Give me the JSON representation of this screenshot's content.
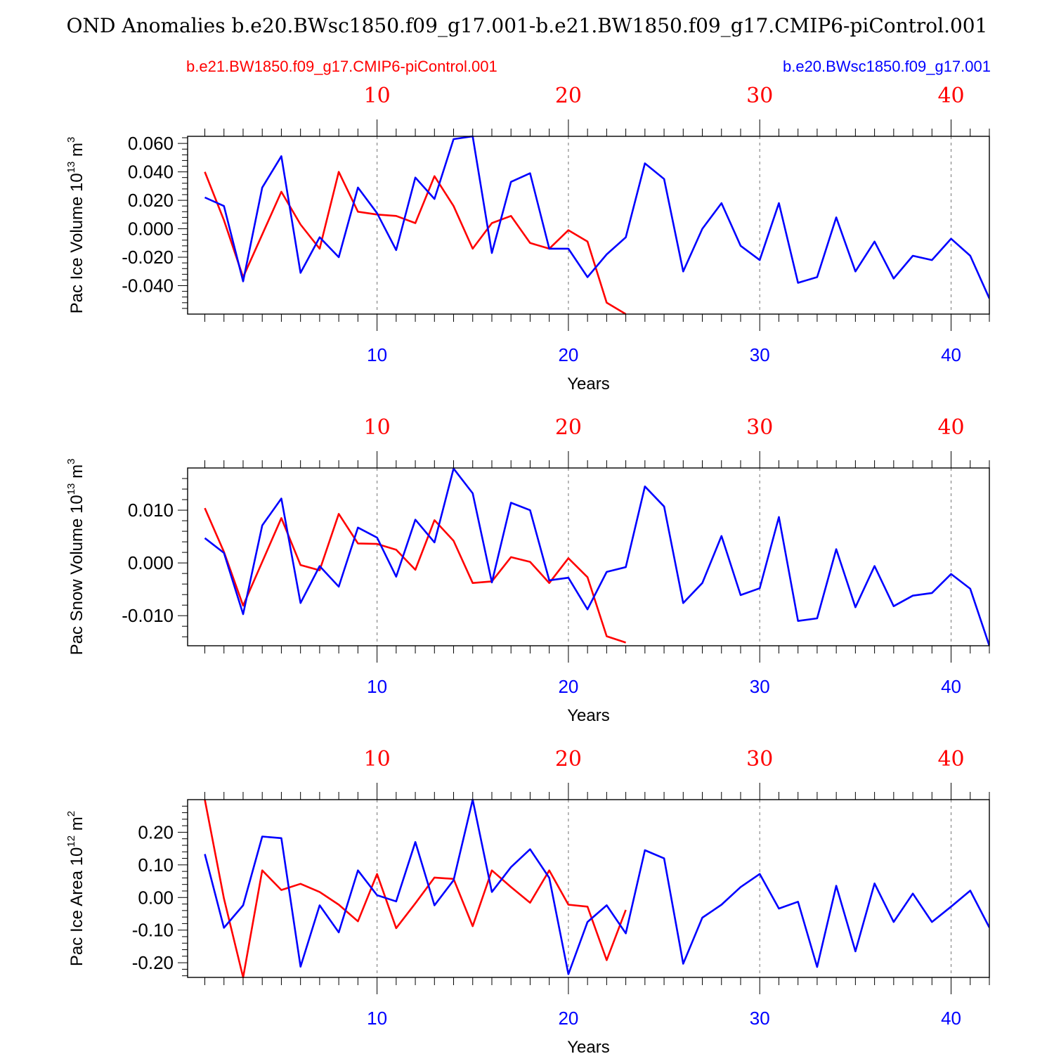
{
  "title": "OND Anomalies b.e20.BWsc1850.f09_g17.001-b.e21.BW1850.f09_g17.CMIP6-piControl.001",
  "legend": {
    "red_label": "b.e21.BW1850.f09_g17.CMIP6-piControl.001",
    "blue_label": "b.e20.BWsc1850.f09_g17.001"
  },
  "colors": {
    "red": "#ff0000",
    "blue": "#0000ff",
    "axis": "#000000",
    "grid": "#888888"
  },
  "chart_data": [
    {
      "type": "line",
      "title": "",
      "xlabel": "Years",
      "ylabel": "Pac Ice Volume 10^13 m^3",
      "ylabel_main": "Pac Ice Volume 10",
      "ylabel_exp": "13",
      "ylabel_unit": " m",
      "ylabel_unit_exp": "3",
      "xlim": [
        0.1,
        42
      ],
      "ylim": [
        -0.06,
        0.065
      ],
      "ytick_values": [
        -0.04,
        -0.02,
        0.0,
        0.02,
        0.04,
        0.06
      ],
      "ytick_labels": [
        "-0.040",
        "-0.020",
        "0.000",
        "0.020",
        "0.040",
        "0.060"
      ],
      "xtick_values": [
        10,
        20,
        30,
        40
      ],
      "xtick_labels": [
        "10",
        "20",
        "30",
        "40"
      ],
      "series": [
        {
          "name": "b.e21.BW1850.f09_g17.CMIP6-piControl.001",
          "color": "#ff0000",
          "x": [
            1,
            2,
            3,
            4,
            5,
            6,
            7,
            8,
            9,
            10,
            11,
            12,
            13,
            14,
            15,
            16,
            17,
            18,
            19,
            20,
            21,
            22,
            23
          ],
          "values": [
            0.04,
            0.006,
            -0.034,
            -0.004,
            0.026,
            0.003,
            -0.014,
            0.04,
            0.012,
            0.01,
            0.009,
            0.004,
            0.037,
            0.016,
            -0.014,
            0.004,
            0.009,
            -0.01,
            -0.014,
            -0.001,
            -0.009,
            -0.052,
            -0.06
          ]
        },
        {
          "name": "b.e20.BWsc1850.f09_g17.001",
          "color": "#0000ff",
          "x": [
            1,
            2,
            3,
            4,
            5,
            6,
            7,
            8,
            9,
            10,
            11,
            12,
            13,
            14,
            15,
            16,
            17,
            18,
            19,
            20,
            21,
            22,
            23,
            24,
            25,
            26,
            27,
            28,
            29,
            30,
            31,
            32,
            33,
            34,
            35,
            36,
            37,
            38,
            39,
            40,
            41,
            42
          ],
          "values": [
            0.022,
            0.016,
            -0.037,
            0.029,
            0.051,
            -0.031,
            -0.006,
            -0.02,
            0.029,
            0.011,
            -0.015,
            0.036,
            0.021,
            0.063,
            0.065,
            -0.017,
            0.033,
            0.039,
            -0.014,
            -0.014,
            -0.034,
            -0.018,
            -0.006,
            0.046,
            0.035,
            -0.03,
            0.0,
            0.018,
            -0.012,
            -0.022,
            0.018,
            -0.038,
            -0.034,
            0.008,
            -0.03,
            -0.009,
            -0.035,
            -0.019,
            -0.022,
            -0.007,
            -0.019,
            -0.049
          ]
        }
      ]
    },
    {
      "type": "line",
      "title": "",
      "xlabel": "Years",
      "ylabel": "Pac Snow Volume 10^13 m^3",
      "ylabel_main": "Pac Snow Volume 10",
      "ylabel_exp": "13",
      "ylabel_unit": " m",
      "ylabel_unit_exp": "3",
      "xlim": [
        0.1,
        42
      ],
      "ylim": [
        -0.0157,
        0.018
      ],
      "ytick_values": [
        -0.01,
        0.0,
        0.01
      ],
      "ytick_labels": [
        "-0.010",
        "0.000",
        "0.010"
      ],
      "xtick_values": [
        10,
        20,
        30,
        40
      ],
      "xtick_labels": [
        "10",
        "20",
        "30",
        "40"
      ],
      "series": [
        {
          "name": "b.e21.BW1850.f09_g17.CMIP6-piControl.001",
          "color": "#ff0000",
          "x": [
            1,
            2,
            3,
            4,
            5,
            6,
            7,
            8,
            9,
            10,
            11,
            12,
            13,
            14,
            15,
            16,
            17,
            18,
            19,
            20,
            21,
            22,
            23
          ],
          "values": [
            0.0104,
            0.0021,
            -0.0081,
            0.0002,
            0.0085,
            -0.0004,
            -0.0014,
            0.0093,
            0.0037,
            0.0036,
            0.0025,
            -0.0013,
            0.0081,
            0.0042,
            -0.0038,
            -0.0035,
            0.0011,
            0.0002,
            -0.0038,
            0.0009,
            -0.0027,
            -0.0139,
            -0.0151
          ]
        },
        {
          "name": "b.e20.BWsc1850.f09_g17.001",
          "color": "#0000ff",
          "x": [
            1,
            2,
            3,
            4,
            5,
            6,
            7,
            8,
            9,
            10,
            11,
            12,
            13,
            14,
            15,
            16,
            17,
            18,
            19,
            20,
            21,
            22,
            23,
            24,
            25,
            26,
            27,
            28,
            29,
            30,
            31,
            32,
            33,
            34,
            35,
            36,
            37,
            38,
            39,
            40,
            41,
            42
          ],
          "values": [
            0.0047,
            0.0019,
            -0.0097,
            0.0071,
            0.0122,
            -0.0076,
            -0.0006,
            -0.0045,
            0.0067,
            0.0048,
            -0.0026,
            0.0082,
            0.0039,
            0.0179,
            0.0132,
            -0.0037,
            0.0114,
            0.01,
            -0.0033,
            -0.0028,
            -0.0088,
            -0.0017,
            -0.0008,
            0.0145,
            0.0107,
            -0.0076,
            -0.0038,
            0.0051,
            -0.0061,
            -0.0048,
            0.0087,
            -0.011,
            -0.0105,
            0.0026,
            -0.0084,
            -0.0006,
            -0.0082,
            -0.0062,
            -0.0057,
            -0.0021,
            -0.0049,
            -0.0157
          ]
        }
      ]
    },
    {
      "type": "line",
      "title": "",
      "xlabel": "Years",
      "ylabel": "Pac Ice Area 10^12 m^2",
      "ylabel_main": "Pac Ice Area 10",
      "ylabel_exp": "12",
      "ylabel_unit": " m",
      "ylabel_unit_exp": "2",
      "xlim": [
        0.1,
        42
      ],
      "ylim": [
        -0.245,
        0.3
      ],
      "ytick_values": [
        -0.2,
        -0.1,
        0.0,
        0.1,
        0.2
      ],
      "ytick_labels": [
        "-0.20",
        "-0.10",
        "0.00",
        "0.10",
        "0.20"
      ],
      "xtick_values": [
        10,
        20,
        30,
        40
      ],
      "xtick_labels": [
        "10",
        "20",
        "30",
        "40"
      ],
      "series": [
        {
          "name": "b.e21.BW1850.f09_g17.CMIP6-piControl.001",
          "color": "#ff0000",
          "x": [
            1,
            2,
            3,
            4,
            5,
            6,
            7,
            8,
            9,
            10,
            11,
            12,
            13,
            14,
            15,
            16,
            17,
            18,
            19,
            20,
            21,
            22,
            23
          ],
          "values": [
            0.3,
            -0.003,
            -0.245,
            0.083,
            0.023,
            0.042,
            0.017,
            -0.022,
            -0.073,
            0.072,
            -0.094,
            -0.018,
            0.061,
            0.057,
            -0.088,
            0.083,
            0.032,
            -0.016,
            0.083,
            -0.022,
            -0.028,
            -0.192,
            -0.038
          ]
        },
        {
          "name": "b.e20.BWsc1850.f09_g17.001",
          "color": "#0000ff",
          "x": [
            1,
            2,
            3,
            4,
            5,
            6,
            7,
            8,
            9,
            10,
            11,
            12,
            13,
            14,
            15,
            16,
            17,
            18,
            19,
            20,
            21,
            22,
            23,
            24,
            25,
            26,
            27,
            28,
            29,
            30,
            31,
            32,
            33,
            34,
            35,
            36,
            37,
            38,
            39,
            40,
            41,
            42
          ],
          "values": [
            0.133,
            -0.093,
            -0.024,
            0.187,
            0.182,
            -0.212,
            -0.024,
            -0.107,
            0.083,
            0.007,
            -0.012,
            0.17,
            -0.024,
            0.053,
            0.3,
            0.017,
            0.093,
            0.148,
            0.06,
            -0.235,
            -0.075,
            -0.024,
            -0.11,
            0.145,
            0.12,
            -0.203,
            -0.062,
            -0.022,
            0.032,
            0.072,
            -0.034,
            -0.013,
            -0.213,
            0.036,
            -0.165,
            0.043,
            -0.075,
            0.012,
            -0.075,
            -0.028,
            0.021,
            -0.092
          ]
        }
      ]
    }
  ]
}
